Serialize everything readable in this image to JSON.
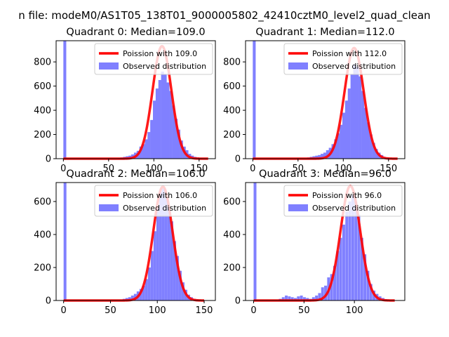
{
  "figure": {
    "suptitle": "n file: modeM0/AS1T05_138T01_9000005802_42410cztM0_level2_quad_clean"
  },
  "colors": {
    "histogram": "#8080ff",
    "poisson_line": "#ff0000",
    "axes": "#000000",
    "background": "#ffffff"
  },
  "chart_data": [
    {
      "type": "bar",
      "title": "Quadrant 0: Median=109.0",
      "xlabel": "",
      "ylabel": "",
      "xlim": [
        -8,
        168
      ],
      "ylim": [
        0,
        975
      ],
      "xticks": [
        0,
        50,
        100,
        150
      ],
      "yticks": [
        0,
        200,
        400,
        600,
        800
      ],
      "legend_position": "upper right",
      "series": [
        {
          "name": "Poission with 109.0",
          "type": "line",
          "mean": 109.0,
          "peak": 930,
          "x_range": [
            0,
            160
          ]
        },
        {
          "name": "Observed distribution",
          "type": "histogram",
          "bin_width": 3.2,
          "spike": {
            "x": 0,
            "value": 975
          },
          "bins": [
            [
              60,
              5
            ],
            [
              63,
              10
            ],
            [
              66,
              15
            ],
            [
              69,
              20
            ],
            [
              72,
              25
            ],
            [
              75,
              35
            ],
            [
              78,
              50
            ],
            [
              81,
              65
            ],
            [
              84,
              100
            ],
            [
              87,
              120
            ],
            [
              90,
              160
            ],
            [
              93,
              220
            ],
            [
              96,
              320
            ],
            [
              99,
              480
            ],
            [
              102,
              580
            ],
            [
              105,
              650
            ],
            [
              108,
              720
            ],
            [
              111,
              700
            ],
            [
              114,
              630
            ],
            [
              117,
              560
            ],
            [
              120,
              440
            ],
            [
              123,
              330
            ],
            [
              126,
              240
            ],
            [
              129,
              150
            ],
            [
              132,
              100
            ],
            [
              135,
              70
            ],
            [
              138,
              40
            ],
            [
              141,
              25
            ],
            [
              144,
              15
            ],
            [
              147,
              10
            ],
            [
              150,
              5
            ]
          ]
        }
      ]
    },
    {
      "type": "bar",
      "title": "Quadrant 1: Median=112.0",
      "xlabel": "",
      "ylabel": "",
      "xlim": [
        -8,
        168
      ],
      "ylim": [
        0,
        975
      ],
      "xticks": [
        0,
        50,
        100,
        150
      ],
      "yticks": [
        0,
        200,
        400,
        600,
        800
      ],
      "legend_position": "upper right",
      "series": [
        {
          "name": "Poission with 112.0",
          "type": "line",
          "mean": 112.0,
          "peak": 915,
          "x_range": [
            0,
            160
          ]
        },
        {
          "name": "Observed distribution",
          "type": "histogram",
          "bin_width": 3.2,
          "spike": {
            "x": 0,
            "value": 975
          },
          "bins": [
            [
              60,
              10
            ],
            [
              63,
              15
            ],
            [
              66,
              20
            ],
            [
              69,
              25
            ],
            [
              72,
              30
            ],
            [
              75,
              40
            ],
            [
              78,
              50
            ],
            [
              81,
              70
            ],
            [
              84,
              90
            ],
            [
              87,
              120
            ],
            [
              90,
              160
            ],
            [
              93,
              210
            ],
            [
              96,
              280
            ],
            [
              99,
              380
            ],
            [
              102,
              480
            ],
            [
              105,
              580
            ],
            [
              108,
              700
            ],
            [
              111,
              780
            ],
            [
              114,
              760
            ],
            [
              117,
              680
            ],
            [
              120,
              560
            ],
            [
              123,
              420
            ],
            [
              126,
              300
            ],
            [
              129,
              200
            ],
            [
              132,
              130
            ],
            [
              135,
              80
            ],
            [
              138,
              50
            ],
            [
              141,
              30
            ],
            [
              144,
              15
            ],
            [
              147,
              8
            ]
          ]
        }
      ]
    },
    {
      "type": "bar",
      "title": "Quadrant 2: Median=106.0",
      "xlabel": "",
      "ylabel": "",
      "xlim": [
        -8,
        162
      ],
      "ylim": [
        0,
        715
      ],
      "xticks": [
        0,
        50,
        100,
        150
      ],
      "yticks": [
        0,
        200,
        400,
        600
      ],
      "legend_position": "upper right",
      "series": [
        {
          "name": "Poission with 106.0",
          "type": "line",
          "mean": 106.0,
          "peak": 690,
          "x_range": [
            0,
            150
          ]
        },
        {
          "name": "Observed distribution",
          "type": "histogram",
          "bin_width": 3.0,
          "spike": {
            "x": 0,
            "value": 715
          },
          "bins": [
            [
              60,
              5
            ],
            [
              63,
              10
            ],
            [
              66,
              15
            ],
            [
              69,
              20
            ],
            [
              72,
              30
            ],
            [
              75,
              40
            ],
            [
              78,
              55
            ],
            [
              81,
              70
            ],
            [
              84,
              90
            ],
            [
              87,
              130
            ],
            [
              90,
              200
            ],
            [
              93,
              300
            ],
            [
              96,
              420
            ],
            [
              99,
              560
            ],
            [
              102,
              660
            ],
            [
              105,
              680
            ],
            [
              108,
              620
            ],
            [
              111,
              560
            ],
            [
              114,
              480
            ],
            [
              117,
              360
            ],
            [
              120,
              270
            ],
            [
              123,
              180
            ],
            [
              126,
              110
            ],
            [
              129,
              65
            ],
            [
              132,
              35
            ],
            [
              135,
              20
            ],
            [
              138,
              10
            ],
            [
              141,
              5
            ]
          ]
        }
      ]
    },
    {
      "type": "bar",
      "title": "Quadrant 3: Median=96.0",
      "xlabel": "",
      "ylabel": "",
      "xlim": [
        -8,
        150
      ],
      "ylim": [
        0,
        715
      ],
      "xticks": [
        0,
        50,
        100
      ],
      "yticks": [
        0,
        200,
        400,
        600
      ],
      "legend_position": "upper right",
      "series": [
        {
          "name": "Poission with 96.0",
          "type": "line",
          "mean": 96.0,
          "peak": 695,
          "x_range": [
            0,
            140
          ]
        },
        {
          "name": "Observed distribution",
          "type": "histogram",
          "bin_width": 2.8,
          "spike": {
            "x": 0,
            "value": 715
          },
          "bins": [
            [
              25,
              10
            ],
            [
              28,
              20
            ],
            [
              31,
              30
            ],
            [
              34,
              25
            ],
            [
              37,
              20
            ],
            [
              40,
              15
            ],
            [
              43,
              25
            ],
            [
              46,
              30
            ],
            [
              49,
              20
            ],
            [
              52,
              15
            ],
            [
              55,
              10
            ],
            [
              58,
              20
            ],
            [
              61,
              30
            ],
            [
              64,
              45
            ],
            [
              67,
              80
            ],
            [
              70,
              90
            ],
            [
              73,
              140
            ],
            [
              76,
              160
            ],
            [
              79,
              210
            ],
            [
              82,
              300
            ],
            [
              85,
              380
            ],
            [
              88,
              460
            ],
            [
              91,
              540
            ],
            [
              94,
              600
            ],
            [
              97,
              640
            ],
            [
              100,
              600
            ],
            [
              103,
              520
            ],
            [
              106,
              380
            ],
            [
              109,
              280
            ],
            [
              112,
              180
            ],
            [
              115,
              100
            ],
            [
              118,
              60
            ],
            [
              121,
              40
            ],
            [
              124,
              25
            ],
            [
              127,
              15
            ],
            [
              130,
              8
            ]
          ]
        }
      ]
    }
  ]
}
